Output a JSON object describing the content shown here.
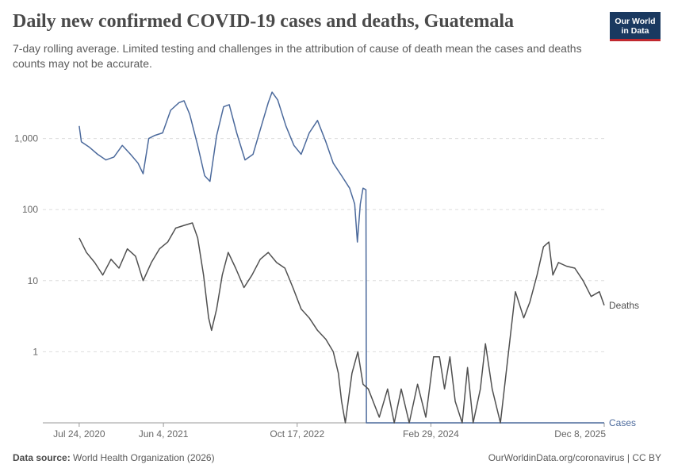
{
  "header": {
    "title": "Daily new confirmed COVID-19 cases and deaths, Guatemala",
    "subtitle": "7-day rolling average. Limited testing and challenges in the attribution of cause of death mean the cases and deaths counts may not be accurate."
  },
  "logo": {
    "line1": "Our World",
    "line2": "in Data",
    "bg_color": "#1a3960",
    "accent_color": "#c0282e"
  },
  "footer": {
    "source_label": "Data source:",
    "source_text": "World Health Organization (2026)",
    "right_text": "OurWorldinData.org/coronavirus | CC BY"
  },
  "chart_data": {
    "type": "line",
    "y_scale": "log",
    "ylim": [
      0.1,
      5000
    ],
    "y_ticks": [
      {
        "value": 1,
        "label": "1"
      },
      {
        "value": 10,
        "label": "10"
      },
      {
        "value": 100,
        "label": "100"
      },
      {
        "value": 1000,
        "label": "1,000"
      }
    ],
    "xlim": [
      "2020-03-10",
      "2025-12-08"
    ],
    "x_ticks": [
      {
        "date": "2020-07-24",
        "label": "Jul 24, 2020"
      },
      {
        "date": "2021-06-04",
        "label": "Jun 4, 2021"
      },
      {
        "date": "2022-10-17",
        "label": "Oct 17, 2022"
      },
      {
        "date": "2024-02-29",
        "label": "Feb 29, 2024"
      },
      {
        "date": "2025-12-08",
        "label": "Dec 8, 2025"
      }
    ],
    "gridlines": true,
    "series": [
      {
        "name": "Cases",
        "color": "#4c6a9c",
        "points": [
          [
            "2020-07-24",
            1500
          ],
          [
            "2020-08-01",
            900
          ],
          [
            "2020-09-01",
            750
          ],
          [
            "2020-10-01",
            600
          ],
          [
            "2020-11-01",
            500
          ],
          [
            "2020-12-01",
            550
          ],
          [
            "2021-01-01",
            800
          ],
          [
            "2021-02-01",
            600
          ],
          [
            "2021-03-01",
            450
          ],
          [
            "2021-03-20",
            320
          ],
          [
            "2021-04-10",
            1000
          ],
          [
            "2021-05-01",
            1100
          ],
          [
            "2021-06-01",
            1200
          ],
          [
            "2021-07-01",
            2500
          ],
          [
            "2021-08-01",
            3200
          ],
          [
            "2021-08-20",
            3400
          ],
          [
            "2021-09-10",
            2200
          ],
          [
            "2021-10-10",
            800
          ],
          [
            "2021-11-05",
            300
          ],
          [
            "2021-11-25",
            250
          ],
          [
            "2021-12-20",
            1100
          ],
          [
            "2022-01-15",
            2800
          ],
          [
            "2022-02-05",
            3000
          ],
          [
            "2022-03-05",
            1200
          ],
          [
            "2022-04-05",
            500
          ],
          [
            "2022-05-05",
            600
          ],
          [
            "2022-06-05",
            1500
          ],
          [
            "2022-07-01",
            3200
          ],
          [
            "2022-07-15",
            4500
          ],
          [
            "2022-08-05",
            3500
          ],
          [
            "2022-09-05",
            1500
          ],
          [
            "2022-10-05",
            800
          ],
          [
            "2022-11-01",
            600
          ],
          [
            "2022-12-01",
            1200
          ],
          [
            "2023-01-01",
            1800
          ],
          [
            "2023-02-01",
            900
          ],
          [
            "2023-03-01",
            450
          ],
          [
            "2023-04-01",
            300
          ],
          [
            "2023-05-01",
            200
          ],
          [
            "2023-05-20",
            120
          ],
          [
            "2023-05-30",
            35
          ],
          [
            "2023-06-10",
            120
          ],
          [
            "2023-06-20",
            200
          ],
          [
            "2023-07-01",
            190
          ],
          [
            "2023-07-03",
            0.1
          ],
          [
            "2025-12-08",
            0.1
          ]
        ]
      },
      {
        "name": "Deaths",
        "color": "#505050",
        "points": [
          [
            "2020-07-24",
            40
          ],
          [
            "2020-08-20",
            25
          ],
          [
            "2020-09-20",
            18
          ],
          [
            "2020-10-20",
            12
          ],
          [
            "2020-11-20",
            20
          ],
          [
            "2020-12-20",
            15
          ],
          [
            "2021-01-20",
            28
          ],
          [
            "2021-02-20",
            22
          ],
          [
            "2021-03-20",
            10
          ],
          [
            "2021-04-20",
            18
          ],
          [
            "2021-05-20",
            28
          ],
          [
            "2021-06-20",
            35
          ],
          [
            "2021-07-20",
            55
          ],
          [
            "2021-08-20",
            60
          ],
          [
            "2021-09-20",
            65
          ],
          [
            "2021-10-10",
            40
          ],
          [
            "2021-11-01",
            12
          ],
          [
            "2021-11-20",
            3
          ],
          [
            "2021-12-01",
            2
          ],
          [
            "2021-12-20",
            4
          ],
          [
            "2022-01-10",
            12
          ],
          [
            "2022-02-01",
            25
          ],
          [
            "2022-03-01",
            15
          ],
          [
            "2022-04-01",
            8
          ],
          [
            "2022-05-01",
            12
          ],
          [
            "2022-06-01",
            20
          ],
          [
            "2022-07-01",
            25
          ],
          [
            "2022-08-01",
            18
          ],
          [
            "2022-09-01",
            15
          ],
          [
            "2022-10-01",
            8
          ],
          [
            "2022-11-01",
            4
          ],
          [
            "2022-12-01",
            3
          ],
          [
            "2023-01-01",
            2
          ],
          [
            "2023-02-01",
            1.5
          ],
          [
            "2023-03-01",
            1
          ],
          [
            "2023-03-20",
            0.5
          ],
          [
            "2023-04-01",
            0.2
          ],
          [
            "2023-04-15",
            0.1
          ],
          [
            "2023-05-10",
            0.5
          ],
          [
            "2023-06-01",
            1
          ],
          [
            "2023-06-20",
            0.35
          ],
          [
            "2023-07-10",
            0.3
          ],
          [
            "2023-08-20",
            0.12
          ],
          [
            "2023-09-20",
            0.3
          ],
          [
            "2023-10-15",
            0.1
          ],
          [
            "2023-11-10",
            0.3
          ],
          [
            "2023-12-10",
            0.1
          ],
          [
            "2024-01-10",
            0.35
          ],
          [
            "2024-02-10",
            0.12
          ],
          [
            "2024-03-10",
            0.85
          ],
          [
            "2024-04-01",
            0.85
          ],
          [
            "2024-04-20",
            0.3
          ],
          [
            "2024-05-10",
            0.85
          ],
          [
            "2024-05-30",
            0.2
          ],
          [
            "2024-06-25",
            0.1
          ],
          [
            "2024-07-15",
            0.6
          ],
          [
            "2024-08-05",
            0.1
          ],
          [
            "2024-09-01",
            0.3
          ],
          [
            "2024-09-20",
            1.3
          ],
          [
            "2024-10-15",
            0.3
          ],
          [
            "2024-11-15",
            0.1
          ],
          [
            "2025-01-10",
            7
          ],
          [
            "2025-02-10",
            3
          ],
          [
            "2025-03-05",
            5
          ],
          [
            "2025-04-01",
            12
          ],
          [
            "2025-04-25",
            30
          ],
          [
            "2025-05-15",
            35
          ],
          [
            "2025-05-30",
            12
          ],
          [
            "2025-06-20",
            18
          ],
          [
            "2025-07-20",
            16
          ],
          [
            "2025-08-20",
            15
          ],
          [
            "2025-09-20",
            10
          ],
          [
            "2025-10-20",
            6
          ],
          [
            "2025-11-20",
            7
          ],
          [
            "2025-12-08",
            4.5
          ]
        ]
      }
    ]
  }
}
